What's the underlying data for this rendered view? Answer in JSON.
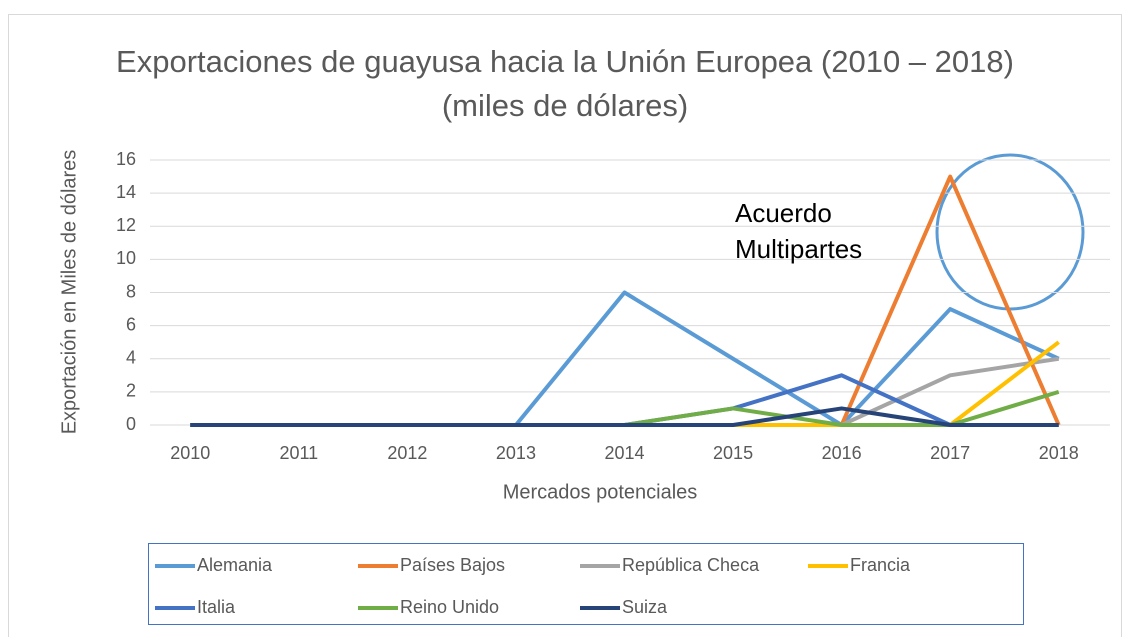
{
  "chart_data": {
    "type": "line",
    "title": "Exportaciones de guayusa hacia la Unión Europea (2010 – 2018) (miles de dólares)",
    "annotation": "Acuerdo Multipartes",
    "xlabel": "Mercados potenciales",
    "ylabel": "Exportación en Miles  de dólares",
    "categories": [
      "2010",
      "2011",
      "2012",
      "2013",
      "2014",
      "2015",
      "2016",
      "2017",
      "2018"
    ],
    "series": [
      {
        "name": "Alemania",
        "color": "#5b9bd5",
        "values": [
          0,
          0,
          0,
          0,
          8,
          4,
          0,
          7,
          4
        ]
      },
      {
        "name": "Países Bajos",
        "color": "#ed7d31",
        "values": [
          0,
          0,
          0,
          0,
          0,
          0,
          0,
          15,
          0
        ]
      },
      {
        "name": "República Checa",
        "color": "#a5a5a5",
        "values": [
          0,
          0,
          0,
          0,
          0,
          0,
          0,
          3,
          4
        ]
      },
      {
        "name": "Francia",
        "color": "#ffc000",
        "values": [
          0,
          0,
          0,
          0,
          0,
          0,
          0,
          0,
          5
        ]
      },
      {
        "name": "Italia",
        "color": "#4472c4",
        "values": [
          0,
          0,
          0,
          0,
          0,
          1,
          3,
          0,
          0
        ]
      },
      {
        "name": "Reino Unido",
        "color": "#70ad47",
        "values": [
          0,
          0,
          0,
          0,
          0,
          1,
          0,
          0,
          2
        ]
      },
      {
        "name": "Suiza",
        "color": "#264478",
        "values": [
          0,
          0,
          0,
          0,
          0,
          0,
          1,
          0,
          0
        ]
      }
    ],
    "ylim": [
      0,
      16
    ],
    "yticks": [
      0,
      2,
      4,
      6,
      8,
      10,
      12,
      14,
      16
    ],
    "grid": true,
    "legend": "bottom"
  }
}
